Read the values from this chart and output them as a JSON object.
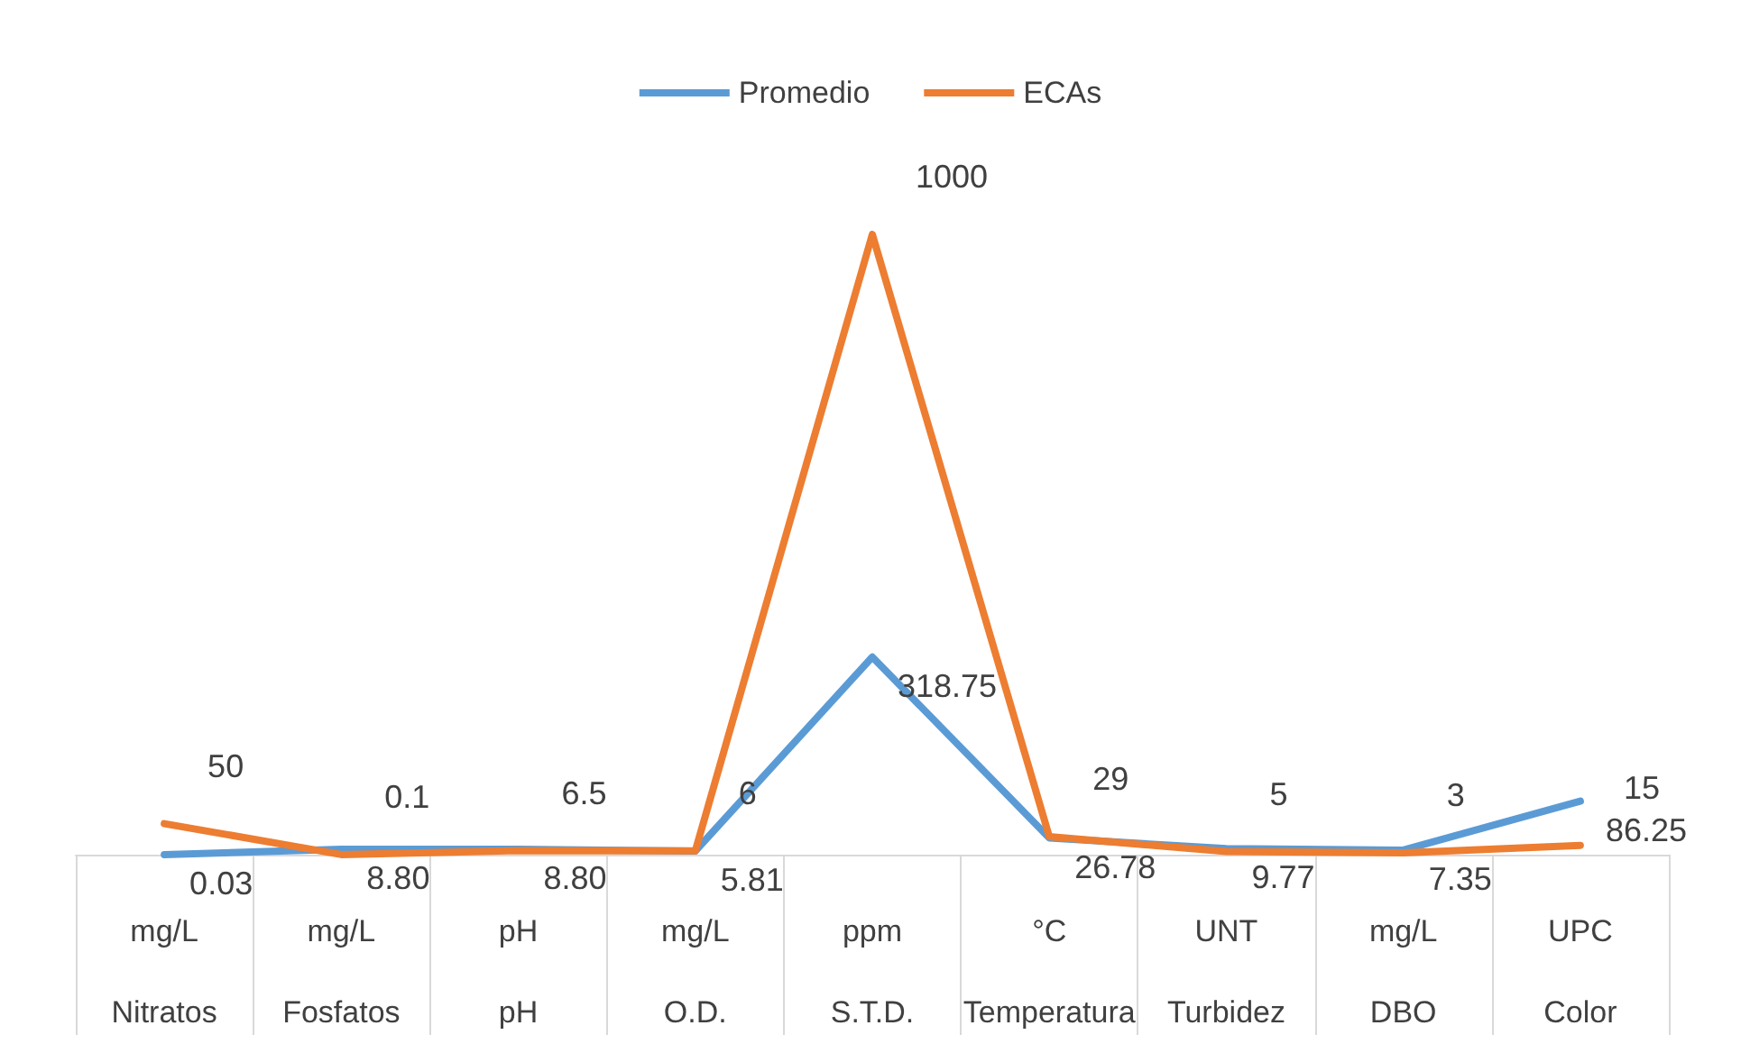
{
  "chart_data": {
    "type": "line",
    "categories": [
      "mg/L\nNitratos",
      "mg/L\nFosfatos",
      "pH\npH",
      "mg/L\nO.D.",
      "ppm\nS.T.D.",
      "°C\nTemperatura",
      "UNT\nTurbidez",
      "mg/L\nDBO",
      "UPC\nColor"
    ],
    "series": [
      {
        "name": "Promedio",
        "color": "#5b9bd5",
        "values": [
          0.03,
          8.8,
          8.8,
          5.81,
          318.75,
          26.78,
          9.77,
          7.35,
          86.25
        ],
        "value_labels": [
          "0.03",
          "8.80",
          "8.80",
          "5.81",
          "318.75",
          "26.78",
          "9.77",
          "7.35",
          "86.25"
        ]
      },
      {
        "name": "ECAs",
        "color": "#ed7d31",
        "values": [
          50,
          0.1,
          6.5,
          6,
          1000,
          29,
          5,
          3,
          15
        ],
        "value_labels": [
          "50",
          "0.1",
          "6.5",
          "6",
          "1000",
          "29",
          "5",
          "3",
          "15"
        ]
      }
    ],
    "legend": "top",
    "marker": "none",
    "line_style": "solid",
    "grid": false,
    "tick_labels": "x"
  }
}
